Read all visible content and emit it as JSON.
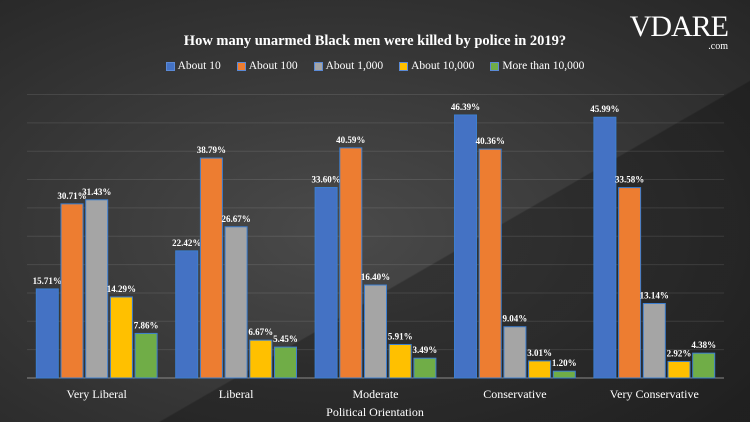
{
  "logo": {
    "text": "VDARE",
    "suffix": ".com"
  },
  "chart_data": {
    "type": "bar",
    "title": "How many unarmed Black men were killed by police in 2019?",
    "xlabel": "Political Orientation",
    "ylabel": "",
    "ylim": [
      0,
      50
    ],
    "grid": true,
    "legend_position": "top",
    "categories": [
      "Very Liberal",
      "Liberal",
      "Moderate",
      "Conservative",
      "Very Conservative"
    ],
    "series": [
      {
        "name": "About 10",
        "color": "#4472c4",
        "values": [
          15.71,
          22.42,
          33.6,
          46.39,
          45.99
        ]
      },
      {
        "name": "About 100",
        "color": "#ed7d31",
        "values": [
          30.71,
          38.79,
          40.59,
          40.36,
          33.58
        ]
      },
      {
        "name": "About 1,000",
        "color": "#a5a5a5",
        "values": [
          31.43,
          26.67,
          16.4,
          9.04,
          13.14
        ]
      },
      {
        "name": "About 10,000",
        "color": "#ffc000",
        "values": [
          14.29,
          6.67,
          5.91,
          3.01,
          2.92
        ]
      },
      {
        "name": "More than 10,000",
        "color": "#70ad47",
        "values": [
          7.86,
          5.45,
          3.49,
          1.2,
          4.38
        ]
      }
    ]
  }
}
